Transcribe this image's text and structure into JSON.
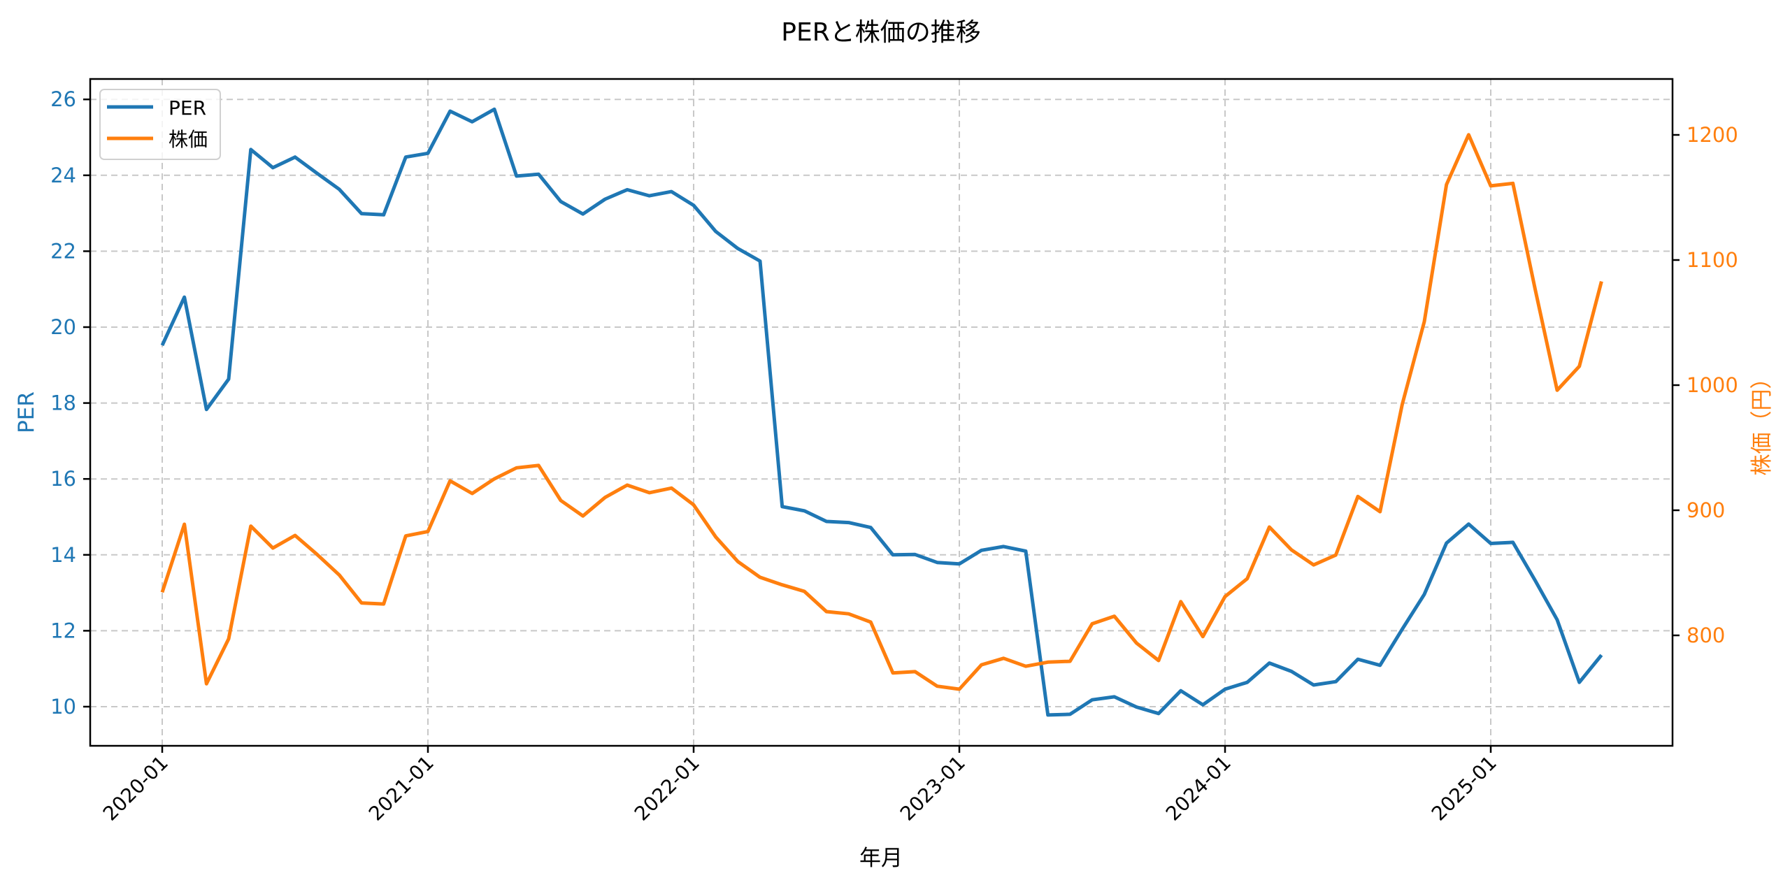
{
  "chart_data": {
    "type": "line",
    "title": "PERと株価の推移",
    "xlabel": "年月",
    "ylabel": "PER",
    "ylabel_right": "株価（円）",
    "x_tick_labels": [
      "2020-01",
      "2021-01",
      "2022-01",
      "2023-01",
      "2024-01",
      "2025-01"
    ],
    "y_ticks_left": [
      10,
      12,
      14,
      16,
      18,
      20,
      22,
      24,
      26
    ],
    "y_ticks_right": [
      800,
      900,
      1000,
      1100,
      1200
    ],
    "ylim_left": [
      8.97,
      26.54
    ],
    "ylim_right": [
      712,
      1245
    ],
    "grid": true,
    "legend_position": "upper left",
    "legend": [
      "PER",
      "株価"
    ],
    "x": [
      "2020-01",
      "2020-02",
      "2020-03",
      "2020-04",
      "2020-05",
      "2020-06",
      "2020-07",
      "2020-08",
      "2020-09",
      "2020-10",
      "2020-11",
      "2020-12",
      "2021-01",
      "2021-02",
      "2021-03",
      "2021-04",
      "2021-05",
      "2021-06",
      "2021-07",
      "2021-08",
      "2021-09",
      "2021-10",
      "2021-11",
      "2021-12",
      "2022-01",
      "2022-02",
      "2022-03",
      "2022-04",
      "2022-05",
      "2022-06",
      "2022-07",
      "2022-08",
      "2022-09",
      "2022-10",
      "2022-11",
      "2022-12",
      "2023-01",
      "2023-02",
      "2023-03",
      "2023-04",
      "2023-05",
      "2023-06",
      "2023-07",
      "2023-08",
      "2023-09",
      "2023-10",
      "2023-11",
      "2023-12",
      "2024-01",
      "2024-02",
      "2024-03",
      "2024-04",
      "2024-05",
      "2024-06",
      "2024-07",
      "2024-08",
      "2024-09",
      "2024-10",
      "2024-11",
      "2024-12",
      "2025-01",
      "2025-02",
      "2025-03",
      "2025-04",
      "2025-05",
      "2025-06"
    ],
    "series": [
      {
        "name": "PER",
        "axis": "left",
        "color": "#1f77b4",
        "values": [
          19.52,
          20.79,
          17.83,
          18.63,
          24.68,
          24.2,
          24.48,
          24.05,
          23.63,
          22.99,
          22.96,
          24.48,
          24.58,
          25.69,
          25.41,
          25.74,
          23.98,
          24.03,
          23.31,
          22.98,
          23.37,
          23.62,
          23.46,
          23.57,
          23.21,
          22.52,
          22.07,
          21.74,
          15.27,
          15.16,
          14.88,
          14.85,
          14.72,
          14.0,
          14.01,
          13.8,
          13.76,
          14.12,
          14.22,
          14.1,
          9.78,
          9.8,
          10.18,
          10.26,
          9.99,
          9.82,
          10.42,
          10.05,
          10.46,
          10.64,
          11.15,
          10.93,
          10.57,
          10.66,
          11.25,
          11.09,
          12.04,
          12.96,
          14.31,
          14.81,
          14.3,
          14.33,
          13.33,
          12.29,
          10.64,
          11.36
        ]
      },
      {
        "name": "株価",
        "axis": "right",
        "color": "#ff7f0e",
        "values": [
          834.4,
          888.8,
          761.3,
          797.2,
          887.3,
          869.8,
          879.9,
          864.6,
          848.2,
          825.9,
          825.1,
          879.5,
          883.0,
          923.5,
          913.4,
          925.1,
          933.9,
          935.8,
          907.8,
          895.4,
          910.2,
          920.1,
          914.0,
          917.7,
          904.3,
          878.6,
          859.0,
          846.4,
          840.4,
          835.2,
          819.0,
          817.2,
          810.6,
          770.0,
          771.0,
          759.4,
          757.0,
          776.5,
          781.7,
          775.3,
          778.6,
          779.3,
          809.3,
          815.3,
          793.9,
          779.9,
          827.0,
          799.0,
          831.0,
          845.3,
          886.6,
          868.3,
          856.3,
          864.2,
          911.0,
          898.8,
          984.6,
          1050.8,
          1160.3,
          1200.1,
          1159.3,
          1161.3,
          1077.0,
          995.9,
          1015.0,
          1082.9
        ]
      }
    ]
  }
}
